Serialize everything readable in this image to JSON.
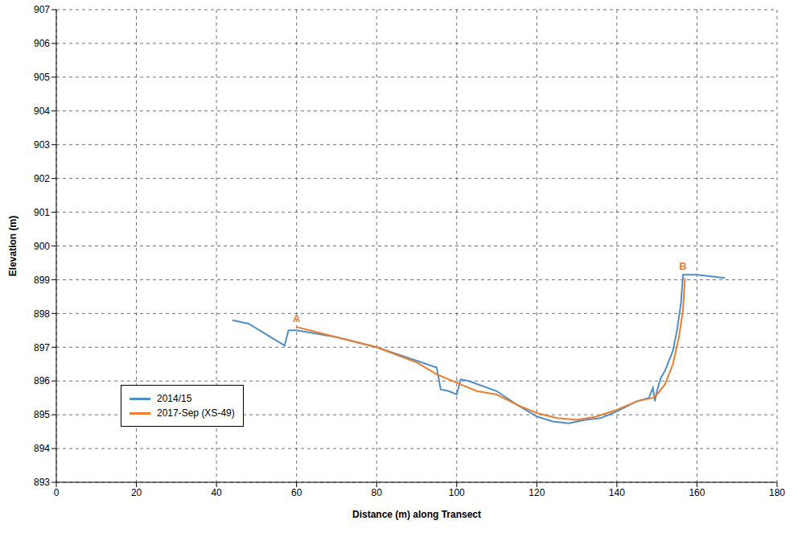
{
  "chart_data": {
    "type": "line",
    "x_label": "Distance (m) along Transect",
    "y_label": "Elevation (m)",
    "xlim": [
      0,
      180
    ],
    "xticks": [
      0,
      20,
      40,
      60,
      80,
      100,
      120,
      140,
      160,
      180
    ],
    "ylim": [
      893,
      907
    ],
    "yticks": [
      893,
      894,
      895,
      896,
      897,
      898,
      899,
      900,
      901,
      902,
      903,
      904,
      905,
      906,
      907
    ],
    "grid": true,
    "legend": "lower left",
    "series": [
      {
        "name": "2014/15",
        "color": "#4f8fc6",
        "x": [
          44,
          48,
          57,
          58,
          60,
          70,
          80,
          90,
          95,
          96,
          98,
          100,
          101,
          103,
          110,
          115,
          120,
          124,
          128,
          132,
          136,
          140,
          145,
          148,
          149,
          149.5,
          150,
          151,
          152,
          154,
          155,
          156,
          156.5,
          160,
          167
        ],
        "values": [
          897.8,
          897.7,
          897.05,
          897.5,
          897.5,
          897.3,
          897.0,
          896.6,
          896.4,
          895.75,
          895.7,
          895.6,
          896.05,
          896.0,
          895.7,
          895.3,
          894.95,
          894.8,
          894.75,
          894.85,
          894.9,
          895.1,
          895.4,
          895.5,
          895.8,
          895.4,
          895.7,
          896.1,
          896.3,
          896.9,
          897.5,
          898.3,
          899.15,
          899.15,
          899.05
        ]
      },
      {
        "name": "2017-Sep (XS-49)",
        "color": "#ed7d31",
        "x": [
          60,
          65,
          70,
          80,
          90,
          95,
          100,
          105,
          110,
          115,
          120,
          125,
          130,
          135,
          140,
          145,
          149,
          150,
          152,
          154,
          155.5,
          156.5,
          157
        ],
        "values": [
          897.6,
          897.45,
          897.3,
          897.0,
          896.55,
          896.2,
          895.95,
          895.7,
          895.6,
          895.3,
          895.05,
          894.9,
          894.85,
          894.95,
          895.15,
          895.4,
          895.5,
          895.6,
          895.9,
          896.5,
          897.3,
          898.1,
          899.05
        ]
      }
    ],
    "annotations": [
      {
        "text": "A",
        "x": 60,
        "y": 897.6,
        "color": "#ed7d31"
      },
      {
        "text": "B",
        "x": 156.5,
        "y": 899.15,
        "color": "#ed7d31"
      }
    ]
  }
}
